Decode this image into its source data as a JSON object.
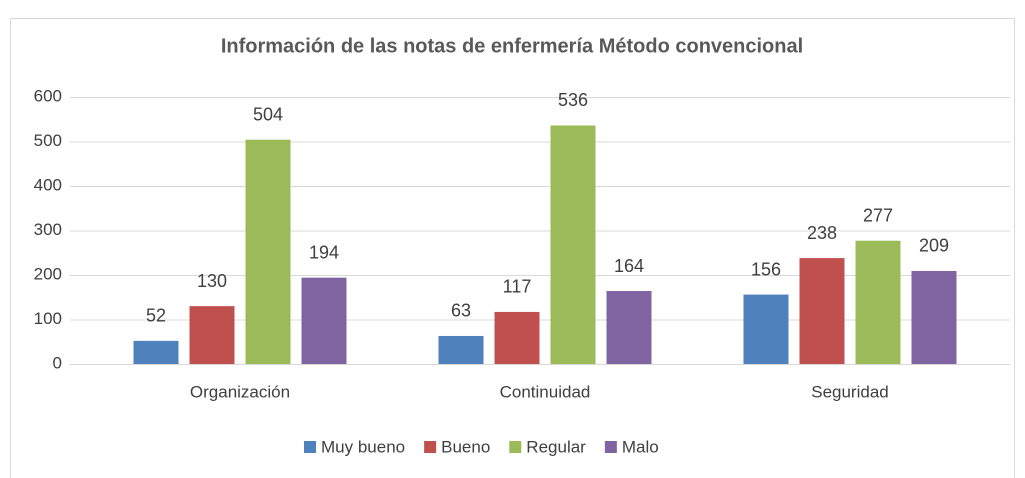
{
  "chart_data": {
    "type": "bar",
    "title": "Información de las notas de enfermería Método convencional",
    "categories": [
      "Organización",
      "Continuidad",
      "Seguridad"
    ],
    "series": [
      {
        "name": "Muy bueno",
        "color": "#4f81bd",
        "values": [
          52,
          63,
          156
        ]
      },
      {
        "name": "Bueno",
        "color": "#c0504d",
        "values": [
          130,
          117,
          238
        ]
      },
      {
        "name": "Regular",
        "color": "#9bbb59",
        "values": [
          504,
          536,
          277
        ]
      },
      {
        "name": "Malo",
        "color": "#8064a2",
        "values": [
          194,
          164,
          209
        ]
      }
    ],
    "ylim": [
      0,
      600
    ],
    "yticks": [
      0,
      100,
      200,
      300,
      400,
      500,
      600
    ],
    "grid": true,
    "legend": "bottom"
  }
}
